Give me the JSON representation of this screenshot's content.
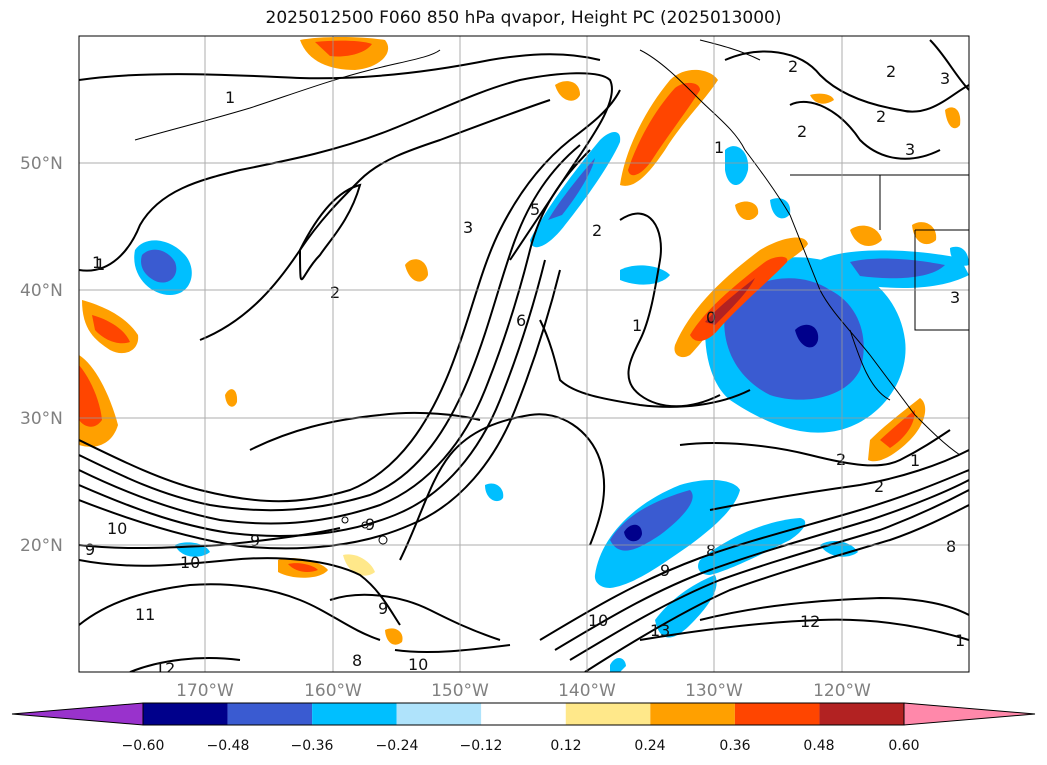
{
  "title": "2025012500 F060 850 hPa qvapor, Height PC (2025013000)",
  "lat_labels": [
    "50°N",
    "40°N",
    "30°N",
    "20°N"
  ],
  "lon_labels": [
    "170°W",
    "160°W",
    "150°W",
    "140°W",
    "130°W",
    "120°W"
  ],
  "colorbar": {
    "ticks": [
      "−0.60",
      "−0.48",
      "−0.36",
      "−0.24",
      "−0.12",
      "0.12",
      "0.24",
      "0.36",
      "0.48",
      "0.60"
    ],
    "colors": [
      "#9932cc",
      "#00008b",
      "#3a5bd1",
      "#00bfff",
      "#afe3fb",
      "#ffffff",
      "#ffe88a",
      "#ffa000",
      "#ff4500",
      "#b22222",
      "#ff88aa"
    ]
  },
  "contour_labels": [
    "1",
    "2",
    "3",
    "5",
    "6",
    "2",
    "1",
    "0",
    "2",
    "3",
    "2",
    "2",
    "1",
    "3",
    "2",
    "3",
    "1",
    "2",
    "1",
    "10",
    "9",
    "9",
    "10",
    "9",
    "11",
    "12",
    "8",
    "10",
    "9",
    "9",
    "8",
    "13",
    "10",
    "12",
    "8",
    "1",
    "2",
    "1"
  ]
}
